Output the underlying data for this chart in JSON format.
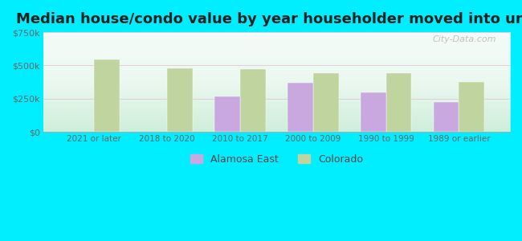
{
  "title": "Median house/condo value by year householder moved into unit",
  "categories": [
    "2021 or later",
    "2018 to 2020",
    "2010 to 2017",
    "2000 to 2009",
    "1990 to 1999",
    "1989 or earlier"
  ],
  "alamosa_east": [
    null,
    null,
    265000,
    370000,
    300000,
    225000
  ],
  "colorado": [
    545000,
    480000,
    470000,
    445000,
    440000,
    375000
  ],
  "bar_color_alamosa": "#c9a8e0",
  "bar_color_colorado": "#c0d4a0",
  "background_outer": "#00eeff",
  "background_inner": "#e0f4e8",
  "ylim": [
    0,
    750000
  ],
  "yticks": [
    0,
    250000,
    500000,
    750000
  ],
  "ytick_labels": [
    "$0",
    "$250k",
    "$500k",
    "$750k"
  ],
  "bar_width": 0.35,
  "legend_labels": [
    "Alamosa East",
    "Colorado"
  ],
  "watermark": "City-Data.com",
  "grid_color": "#ddbbcc",
  "tick_color": "#666666",
  "title_fontsize": 13
}
